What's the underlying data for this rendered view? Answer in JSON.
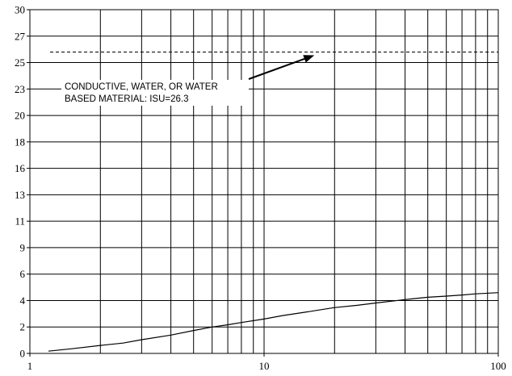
{
  "chart_data": {
    "type": "line",
    "title": "",
    "xlabel": "",
    "ylabel": "",
    "x_scale": "log",
    "xlim": [
      1,
      100
    ],
    "ylim": [
      0,
      30
    ],
    "x_tick_labels": [
      "1",
      "10",
      "100"
    ],
    "y_tick_labels": [
      "0",
      "2",
      "4",
      "6",
      "9",
      "11",
      "13",
      "16",
      "18",
      "20",
      "23",
      "25",
      "27",
      "30"
    ],
    "grid": true,
    "series": [
      {
        "x": [
          1.2,
          1.5,
          2,
          2.5,
          3,
          4,
          5,
          6,
          7,
          8,
          10,
          12,
          15,
          20,
          25,
          30,
          40,
          50,
          60,
          70,
          80,
          100
        ],
        "y": [
          0.2,
          0.4,
          0.7,
          0.9,
          1.2,
          1.6,
          2.0,
          2.3,
          2.5,
          2.7,
          3.0,
          3.3,
          3.6,
          4.0,
          4.2,
          4.4,
          4.7,
          4.9,
          5.0,
          5.1,
          5.2,
          5.3
        ],
        "style": "solid",
        "color": "#000000"
      }
    ],
    "reference_line": {
      "y": 26.3,
      "style": "dashed",
      "color": "#000000"
    },
    "annotation": {
      "lines": [
        "CONDUCTIVE, WATER, OR WATER",
        "BASED MATERIAL: ISU=26.3"
      ],
      "arrow_target": {
        "x": 16,
        "y": 26.3
      }
    }
  }
}
